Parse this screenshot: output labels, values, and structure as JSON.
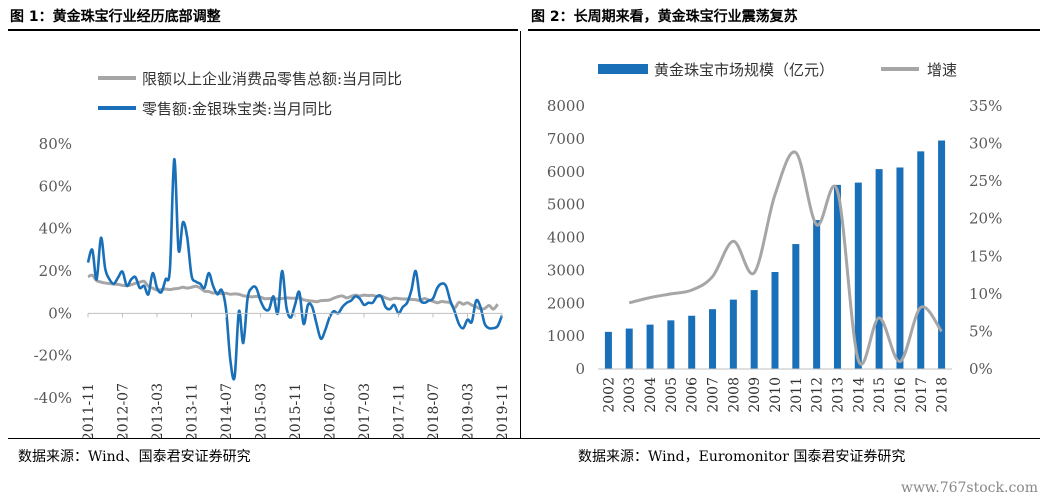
{
  "panels": {
    "left_title": "图 1：黄金珠宝行业经历底部调整",
    "right_title": "图 2：长周期来看，黄金珠宝行业震荡复苏"
  },
  "sources": {
    "left": "数据来源：Wind、国泰君安证券研究",
    "right": "数据来源：Wind，Euromonitor 国泰君安证券研究"
  },
  "watermark": "www.767stock.com",
  "chart_data": [
    {
      "type": "line",
      "title": "",
      "xlabel": "",
      "ylabel": "",
      "ylim": [
        -0.4,
        0.8
      ],
      "yticks": [
        "80%",
        "60%",
        "40%",
        "20%",
        "0%",
        "-20%",
        "-40%"
      ],
      "ytick_values": [
        0.8,
        0.6,
        0.4,
        0.2,
        0.0,
        -0.2,
        -0.4
      ],
      "x_ticks": [
        "2011-11",
        "2012-07",
        "2013-03",
        "2013-11",
        "2014-07",
        "2015-03",
        "2015-11",
        "2016-07",
        "2017-03",
        "2017-11",
        "2018-07",
        "2019-03",
        "2019-11"
      ],
      "x_start": "2011-11",
      "legend": "top",
      "grid": false,
      "series": [
        {
          "name": "限额以上企业消费品零售总额:当月同比",
          "color": "#a6a6a6",
          "values": [
            0.173,
            0.18,
            0.155,
            0.148,
            0.143,
            0.141,
            0.138,
            0.137,
            0.132,
            0.131,
            0.135,
            0.142,
            0.147,
            0.151,
            0.128,
            0.119,
            0.11,
            0.112,
            0.115,
            0.112,
            0.116,
            0.118,
            0.123,
            0.119,
            0.123,
            0.128,
            0.12,
            0.105,
            0.103,
            0.096,
            0.097,
            0.093,
            0.095,
            0.09,
            0.092,
            0.09,
            0.083,
            0.08,
            0.078,
            0.08,
            0.077,
            0.069,
            0.07,
            0.07,
            0.068,
            0.07,
            0.073,
            0.072,
            0.071,
            0.073,
            0.064,
            0.06,
            0.058,
            0.055,
            0.06,
            0.061,
            0.063,
            0.072,
            0.079,
            0.082,
            0.073,
            0.08,
            0.086,
            0.082,
            0.086,
            0.084,
            0.085,
            0.08,
            0.081,
            0.073,
            0.066,
            0.071,
            0.07,
            0.068,
            0.068,
            0.066,
            0.064,
            0.06,
            0.07,
            0.063,
            0.057,
            0.05,
            0.056,
            0.053,
            0.05,
            0.025,
            0.052,
            0.043,
            0.05,
            0.039,
            0.031,
            0.021,
            0.023,
            0.037,
            0.02,
            0.043
          ]
        },
        {
          "name": "零售额:金银珠宝类:当月同比",
          "color": "#1a70b8",
          "values": [
            0.24,
            0.3,
            0.16,
            0.357,
            0.21,
            0.16,
            0.14,
            0.17,
            0.197,
            0.13,
            0.16,
            0.171,
            0.12,
            0.13,
            0.09,
            0.19,
            0.12,
            0.1,
            0.16,
            0.21,
            0.728,
            0.3,
            0.43,
            0.36,
            0.18,
            0.15,
            0.14,
            0.12,
            0.19,
            0.13,
            0.09,
            0.11,
            0.02,
            -0.22,
            -0.3,
            0.01,
            -0.14,
            0.07,
            0.12,
            0.12,
            0.06,
            0.02,
            0.02,
            0.08,
            0.0,
            0.2,
            0.03,
            -0.02,
            0.04,
            0.1,
            -0.05,
            0.04,
            0.03,
            -0.05,
            -0.12,
            -0.08,
            -0.02,
            0.01,
            0.0,
            0.03,
            0.05,
            0.06,
            0.08,
            0.07,
            0.04,
            0.05,
            0.05,
            0.08,
            0.08,
            0.03,
            0.02,
            0.04,
            0.0,
            0.03,
            0.05,
            0.11,
            0.2,
            0.07,
            0.05,
            0.06,
            0.07,
            0.12,
            0.14,
            0.13,
            0.06,
            0.01,
            -0.05,
            -0.07,
            -0.03,
            -0.04,
            0.06,
            0.03,
            -0.05,
            -0.07,
            -0.07,
            -0.06,
            -0.01
          ]
        }
      ]
    },
    {
      "type": "bar",
      "title": "",
      "xlabel": "",
      "ylabel": "",
      "categories": [
        "2002",
        "2003",
        "2004",
        "2005",
        "2006",
        "2007",
        "2008",
        "2009",
        "2010",
        "2011",
        "2012",
        "2013",
        "2014",
        "2015",
        "2016",
        "2017",
        "2018"
      ],
      "ylim": [
        0,
        8000
      ],
      "yticks": [
        "8000",
        "7000",
        "6000",
        "5000",
        "4000",
        "3000",
        "2000",
        "1000",
        "0"
      ],
      "ytick_values": [
        8000,
        7000,
        6000,
        5000,
        4000,
        3000,
        2000,
        1000,
        0
      ],
      "y2lim": [
        0,
        0.35
      ],
      "y2ticks": [
        "35%",
        "30%",
        "25%",
        "20%",
        "15%",
        "10%",
        "5%",
        "0%"
      ],
      "y2tick_values": [
        0.35,
        0.3,
        0.25,
        0.2,
        0.15,
        0.1,
        0.05,
        0.0
      ],
      "legend": "top",
      "grid": false,
      "series": [
        {
          "name": "黄金珠宝市场规模（亿元）",
          "kind": "bar",
          "axis": "left",
          "color": "#1a70b8",
          "values": [
            1130,
            1230,
            1350,
            1480,
            1620,
            1820,
            2110,
            2400,
            2950,
            3800,
            4530,
            5600,
            5670,
            6080,
            6130,
            6620,
            6950
          ]
        },
        {
          "name": "增速",
          "kind": "line",
          "axis": "right",
          "color": "#a6a6a6",
          "values": [
            null,
            0.088,
            0.095,
            0.1,
            0.105,
            0.123,
            0.17,
            0.128,
            0.232,
            0.288,
            0.192,
            0.237,
            0.012,
            0.068,
            0.01,
            0.082,
            0.05
          ]
        }
      ]
    }
  ]
}
